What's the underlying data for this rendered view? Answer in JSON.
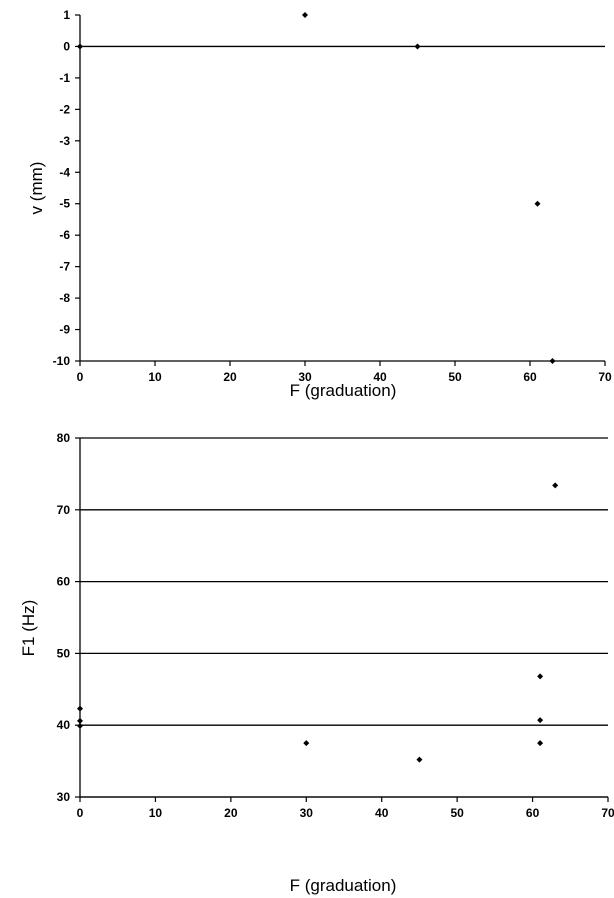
{
  "chart_data": [
    {
      "type": "scatter",
      "xlabel": "F (graduation)",
      "ylabel": "v (mm)",
      "xlim": [
        0,
        70
      ],
      "ylim": [
        -10,
        1
      ],
      "xticks": [
        0,
        10,
        20,
        30,
        40,
        50,
        60,
        70
      ],
      "yticks": [
        1,
        0,
        -1,
        -2,
        -3,
        -4,
        -5,
        -6,
        -7,
        -8,
        -9,
        -10
      ],
      "grid": false,
      "zero_line": true,
      "marker_color": "#000000",
      "series": [
        {
          "x": [
            0,
            30,
            45,
            61,
            63
          ],
          "y": [
            0,
            1,
            0,
            -5,
            -10
          ]
        }
      ]
    },
    {
      "type": "scatter",
      "xlabel": "F (graduation)",
      "ylabel": "F1 (Hz)",
      "xlim": [
        0,
        70
      ],
      "ylim": [
        30,
        80
      ],
      "xticks": [
        0,
        10,
        20,
        30,
        40,
        50,
        60,
        70
      ],
      "yticks": [
        80,
        70,
        60,
        50,
        40,
        30
      ],
      "grid": true,
      "zero_line": false,
      "marker_color": "#000000",
      "series": [
        {
          "x": [
            0,
            0,
            0,
            30,
            45,
            61,
            61,
            61,
            63
          ],
          "y": [
            42.3,
            40.6,
            39.9,
            37.5,
            35.2,
            46.8,
            40.7,
            37.5,
            73.4
          ]
        }
      ]
    }
  ]
}
